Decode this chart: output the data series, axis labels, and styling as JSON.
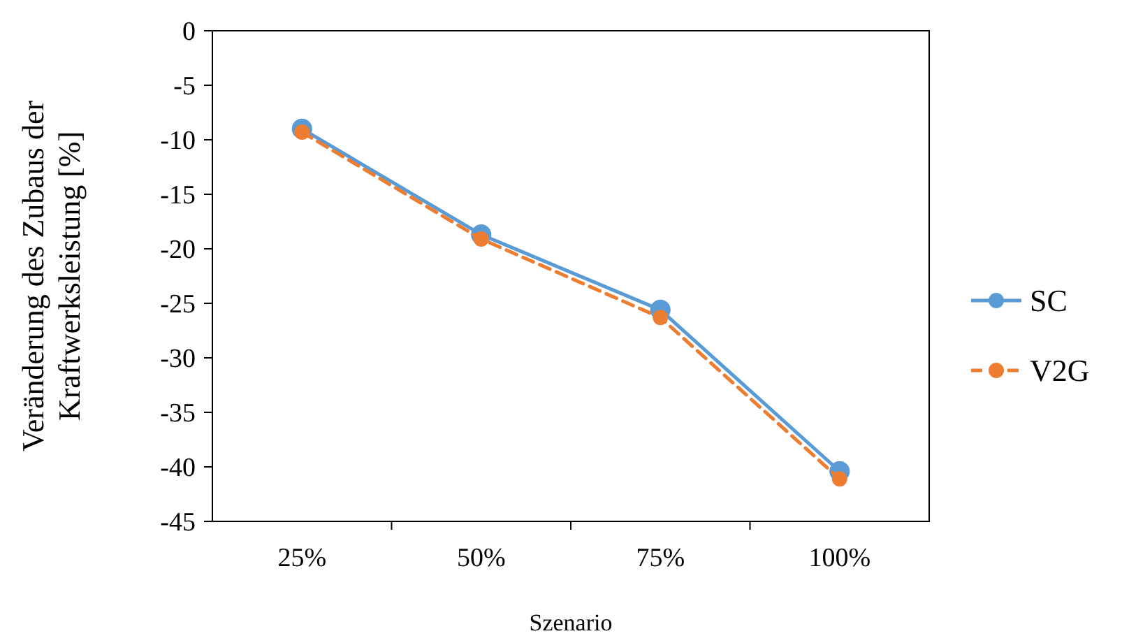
{
  "chart_data": {
    "type": "line",
    "xlabel": "Szenario",
    "ylabel": "Veränderung des Zubaus der Kraftwerksleistung [%]",
    "categories": [
      "25%",
      "50%",
      "75%",
      "100%"
    ],
    "series": [
      {
        "name": "SC",
        "color": "#5b9bd5",
        "values": [
          -9.0,
          -18.7,
          -25.6,
          -40.4
        ],
        "line_style": "solid"
      },
      {
        "name": "V2G",
        "color": "#ed7d31",
        "values": [
          -9.3,
          -19.1,
          -26.3,
          -41.1
        ],
        "line_style": "dashed"
      }
    ],
    "ylim": [
      -45,
      0
    ],
    "yticks": [
      0,
      -5,
      -10,
      -15,
      -20,
      -25,
      -30,
      -35,
      -40,
      -45
    ],
    "grid": false,
    "legend": "right",
    "marker": "circle"
  }
}
